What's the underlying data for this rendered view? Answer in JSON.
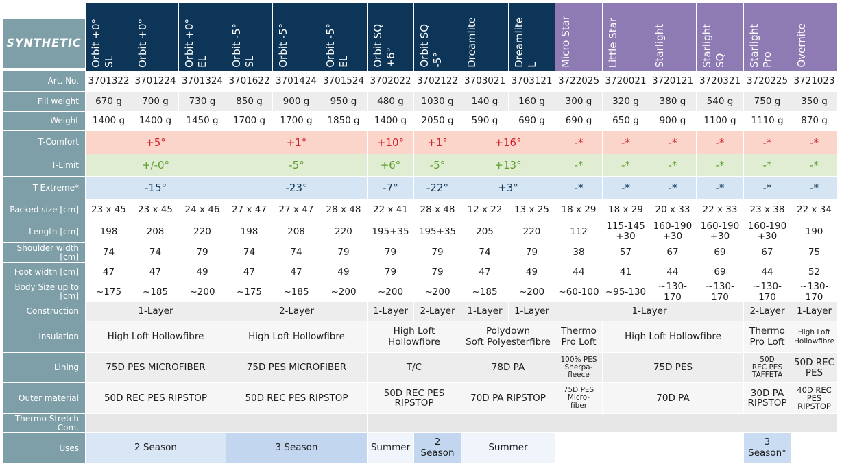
{
  "table_title": "SYNTHETIC",
  "colors": {
    "navy": "#0c3558",
    "purple": "#8f7bb3",
    "label_bg": "#7f9fa8",
    "comfort_bg": "#fbd5c9",
    "limit_bg": "#e1edd2",
    "extreme_bg": "#d6e5f3",
    "comfort_text": "#d2232a",
    "limit_text": "#5a9f2f",
    "extreme_text": "#0c3558",
    "uses_2s": "#d8e6f6",
    "uses_3s": "#c2d7ef",
    "uses_summer": "#f0f4fb",
    "uses_3s_pro": "#c9dcf1"
  },
  "columns": [
    "Orbit +0°\nSL",
    "Orbit +0°",
    "Orbit +0°\nEL",
    "Orbit -5°\nSL",
    "Orbit -5°",
    "Orbit -5°\nEL",
    "Orbit SQ\n+6°",
    "Orbit SQ\n-5°",
    "Dreamlite",
    "Dreamlite\nL",
    "Micro Star",
    "Little Star",
    "Starlight",
    "Starlight\nSQ",
    "Starlight\nPro",
    "Overnite"
  ],
  "row_labels": [
    "Art. No.",
    "Fill weight",
    "Weight",
    "T-Comfort",
    "T-Limit",
    "T-Extreme*",
    "Packed size [cm]",
    "Length [cm]",
    "Shoulder width\n[cm]",
    "Foot width [cm]",
    "Body Size up to\n[cm]",
    "Construction",
    "Insulation",
    "Lining",
    "Outer material",
    "Thermo Stretch\nCom.",
    "Uses"
  ],
  "art_no": [
    "3701322",
    "3701224",
    "3701324",
    "3701622",
    "3701424",
    "3701524",
    "3702022",
    "3702122",
    "3703021",
    "3703121",
    "3722025",
    "3720021",
    "3720121",
    "3720321",
    "3720225",
    "3721023"
  ],
  "fill_weight": [
    "670 g",
    "700 g",
    "730 g",
    "850 g",
    "900 g",
    "950 g",
    "480 g",
    "1030 g",
    "140 g",
    "160 g",
    "300 g",
    "320 g",
    "380 g",
    "540 g",
    "750 g",
    "350 g"
  ],
  "weight": [
    "1400 g",
    "1400 g",
    "1450 g",
    "1700 g",
    "1700 g",
    "1850 g",
    "1400 g",
    "2050 g",
    "590 g",
    "690 g",
    "690 g",
    "650 g",
    "900 g",
    "1100 g",
    "1110 g",
    "870 g"
  ],
  "t_comfort": [
    "+5°",
    "+1°",
    "+10°",
    "+1°",
    "+16°",
    "-*",
    "-*",
    "-*",
    "-*",
    "-*",
    "-*"
  ],
  "t_limit": [
    "+/-0°",
    "-5°",
    "+6°",
    "-5°",
    "+13°",
    "-*",
    "-*",
    "-*",
    "-*",
    "-*",
    "-*"
  ],
  "t_extreme": [
    "-15°",
    "-23°",
    "-7°",
    "-22°",
    "+3°",
    "-*",
    "-*",
    "-*",
    "-*",
    "-*",
    "-*"
  ],
  "packed_size": [
    "23 x 45",
    "23 x 45",
    "24 x 46",
    "27 x 47",
    "27 x 47",
    "28 x 48",
    "22 x 41",
    "28 x 48",
    "12 x 22",
    "13 x 25",
    "18 x 29",
    "18 x 29",
    "20 x 33",
    "22 x 33",
    "23 x 38",
    "22 x 34"
  ],
  "length": [
    "198",
    "208",
    "220",
    "198",
    "208",
    "220",
    "195+35",
    "195+35",
    "205",
    "220",
    "112",
    "115-145\n+30",
    "160-190\n+30",
    "160-190\n+30",
    "160-190\n+30",
    "190"
  ],
  "shoulder_width": [
    "74",
    "74",
    "79",
    "74",
    "74",
    "79",
    "79",
    "79",
    "74",
    "79",
    "38",
    "57",
    "67",
    "69",
    "67",
    "75"
  ],
  "foot_width": [
    "47",
    "47",
    "49",
    "47",
    "47",
    "49",
    "79",
    "79",
    "47",
    "49",
    "44",
    "41",
    "44",
    "69",
    "44",
    "52"
  ],
  "body_size": [
    "~175",
    "~185",
    "~200",
    "~175",
    "~185",
    "~200",
    "~200",
    "~200",
    "~185",
    "~200",
    "~60-100",
    "~95-130",
    "~130-170",
    "~130-170",
    "~130-170",
    "~130-170"
  ],
  "construction": [
    "1-Layer",
    "2-Layer",
    "1-Layer",
    "2-Layer",
    "1-Layer",
    "1-Layer",
    "1-Layer",
    "2-Layer",
    "1-Layer"
  ],
  "insulation": [
    "High Loft Hollowfibre",
    "High Loft Hollowfibre",
    "High Loft\nHollowfibre",
    "Polydown\nSoft Polyesterfibre",
    "Thermo\nPro Loft",
    "High Loft Hollowfibre",
    "Thermo\nPro Loft",
    "High Loft\nHollowfibre"
  ],
  "lining": [
    "75D PES MICROFIBER",
    "75D PES MICROFIBER",
    "T/C",
    "78D PA",
    "100% PES\nSherpa-\nfleece",
    "75D PES",
    "50D\nREC PES\nTAFFETA",
    "50D REC\nPES"
  ],
  "outer_material": [
    "50D REC PES RIPSTOP",
    "50D REC PES RIPSTOP",
    "50D REC PES\nRIPSTOP",
    "70D PA RIPSTOP",
    "75D PES\nMicro-\nfiber",
    "70D PA",
    "30D PA\nRIPSTOP",
    "40D REC\nPES\nRIPSTOP"
  ],
  "uses": [
    "2 Season",
    "3 Season",
    "Summer",
    "2\nSeason",
    "Summer",
    "3 Season*"
  ]
}
